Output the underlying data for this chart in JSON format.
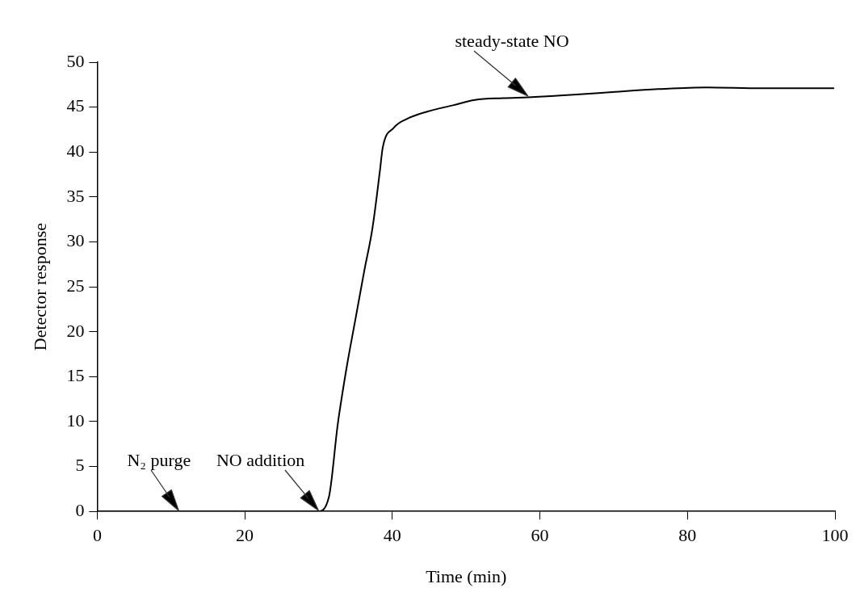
{
  "chart_data": {
    "type": "line",
    "xlabel": "Time (min)",
    "ylabel": "Detector response",
    "x": [
      0,
      5,
      10,
      15,
      20,
      22,
      25,
      27,
      28.5,
      29.9,
      31.4,
      32.6,
      33.8,
      35,
      36.2,
      37.3,
      38.3,
      38.7,
      40.2,
      42,
      44.7,
      48.2,
      51.2,
      55,
      58.4,
      65,
      70.2,
      76,
      82.6,
      90,
      99.8
    ],
    "series": [
      {
        "color": "#000000",
        "values": [
          0,
          0,
          0,
          0,
          0,
          0,
          0,
          0,
          0,
          0,
          1.6,
          9.7,
          16,
          21.4,
          26.8,
          31.5,
          37.8,
          40.5,
          42.7,
          43.7,
          44.5,
          45.2,
          45.8,
          46,
          46.1,
          46.4,
          46.7,
          47,
          47.2,
          47.1,
          47.1
        ]
      }
    ],
    "xlim": [
      0,
      100
    ],
    "xticks": [
      0,
      20,
      40,
      60,
      80,
      100
    ],
    "ylim": [
      0,
      50
    ],
    "yticks": [
      0,
      5,
      10,
      15,
      20,
      25,
      30,
      35,
      40,
      45,
      50
    ],
    "grid": false,
    "legend": false,
    "marker": "none",
    "line_style": "solid",
    "annotations": [
      {
        "text": "N₂ purge",
        "x": 11,
        "y": 0
      },
      {
        "text": "NO addition",
        "x": 30,
        "y": 0
      },
      {
        "text": "steady-state NO",
        "x": 58.4,
        "y": 46.1
      }
    ]
  }
}
